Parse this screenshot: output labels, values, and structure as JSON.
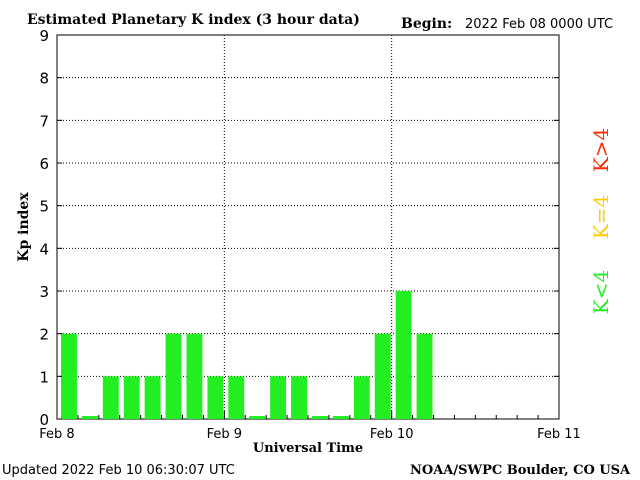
{
  "header": {
    "title": "Estimated Planetary K index (3 hour data)",
    "begin_label": "Begin:",
    "begin_value": "2022 Feb 08 0000 UTC"
  },
  "footer": {
    "updated": "Updated 2022 Feb 10 06:30:07 UTC",
    "source": "NOAA/SWPC Boulder, CO USA"
  },
  "legend": {
    "high": {
      "label": "K>4",
      "color": "#ff2a00"
    },
    "equal": {
      "label": "K=4",
      "color": "#ffcc00"
    },
    "low": {
      "label": "K<4",
      "color": "#22ee22"
    }
  },
  "chart_data": {
    "type": "bar",
    "title": "Estimated Planetary K index (3 hour data)",
    "xlabel": "Universal Time",
    "ylabel": "Kp index",
    "ylim": [
      0,
      9
    ],
    "y_ticks": [
      0,
      1,
      2,
      3,
      4,
      5,
      6,
      7,
      8,
      9
    ],
    "x_tick_labels": [
      "Feb 8",
      "Feb 9",
      "Feb 10",
      "Feb 11"
    ],
    "x_days": 3,
    "bars_per_day": 8,
    "grid": "dotted",
    "bar_color": "#22ee22",
    "values": [
      2,
      0.07,
      1,
      1,
      1,
      2,
      2,
      1,
      1,
      0.07,
      1,
      1,
      0.07,
      0.07,
      1,
      2,
      3,
      2
    ]
  }
}
